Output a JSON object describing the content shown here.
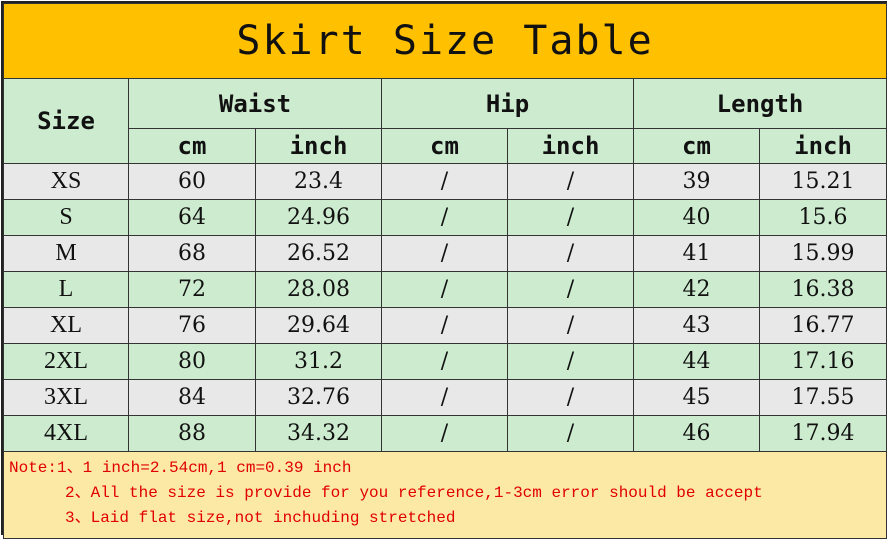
{
  "title": "Skirt Size Table",
  "headers": {
    "size": "Size",
    "groups": [
      "Waist",
      "Hip",
      "Length"
    ],
    "units": [
      "cm",
      "inch",
      "cm",
      "inch",
      "cm",
      "inch"
    ]
  },
  "rows": [
    {
      "size": "XS",
      "values": [
        "60",
        "23.4",
        "/",
        "/",
        "39",
        "15.21"
      ]
    },
    {
      "size": "S",
      "values": [
        "64",
        "24.96",
        "/",
        "/",
        "40",
        "15.6"
      ]
    },
    {
      "size": "M",
      "values": [
        "68",
        "26.52",
        "/",
        "/",
        "41",
        "15.99"
      ]
    },
    {
      "size": "L",
      "values": [
        "72",
        "28.08",
        "/",
        "/",
        "42",
        "16.38"
      ]
    },
    {
      "size": "XL",
      "values": [
        "76",
        "29.64",
        "/",
        "/",
        "43",
        "16.77"
      ]
    },
    {
      "size": "2XL",
      "values": [
        "80",
        "31.2",
        "/",
        "/",
        "44",
        "17.16"
      ]
    },
    {
      "size": "3XL",
      "values": [
        "84",
        "32.76",
        "/",
        "/",
        "45",
        "17.55"
      ]
    },
    {
      "size": "4XL",
      "values": [
        "88",
        "34.32",
        "/",
        "/",
        "46",
        "17.94"
      ]
    }
  ],
  "notes": [
    "Note:1、1 inch=2.54cm,1 cm=0.39 inch",
    "2、All the size is provide for you reference,1-3cm error should be accept",
    "3、Laid flat size,not inchuding stretched"
  ],
  "colors": {
    "title_bg": "#FFC000",
    "green_row": "#cdeccf",
    "gray_row": "#e8e8e8",
    "note_bg": "#fde9a6",
    "note_text": "#e00000"
  }
}
